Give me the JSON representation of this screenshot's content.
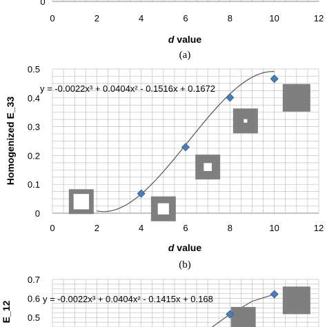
{
  "chart_data": [
    {
      "type": "scatter",
      "panel": "a",
      "visible": "partial (bottom edge only)",
      "caption": "(a)",
      "xlabel_italic": "d",
      "xlabel_rest": " value",
      "xlim": [
        0,
        12
      ],
      "x_ticks": [
        "0",
        "2",
        "4",
        "6",
        "8",
        "10",
        "12"
      ],
      "y_ticks": [
        "0"
      ]
    },
    {
      "type": "scatter",
      "panel": "b",
      "caption": "(b)",
      "xlabel_italic": "d",
      "xlabel_rest": " value",
      "ylabel": "Homogenized E_33",
      "xlim": [
        0,
        12
      ],
      "ylim": [
        0,
        0.5
      ],
      "x_ticks": [
        "0",
        "2",
        "4",
        "6",
        "8",
        "10",
        "12"
      ],
      "y_ticks": [
        "0",
        "0.1",
        "0.2",
        "0.3",
        "0.4",
        "0.5"
      ],
      "grid": true,
      "marker": "diamond",
      "marker_color": "#4a7ebb",
      "series": [
        {
          "x": [
            4,
            6,
            8,
            10
          ],
          "y": [
            0.068,
            0.229,
            0.401,
            0.466
          ]
        }
      ],
      "trendline": {
        "label": "y = -0.0022x³ + 0.0404x² - 0.1516x + 0.1672",
        "coefficients": [
          -0.0022,
          0.0404,
          -0.1516,
          0.1672
        ],
        "x_range": [
          2,
          10
        ]
      },
      "insets": [
        {
          "shape": "square-frame",
          "hole": "large",
          "x": 1.3,
          "y": 0.04
        },
        {
          "shape": "square-frame",
          "hole": "medium",
          "x": 5.0,
          "y": 0.015
        },
        {
          "shape": "square-frame",
          "hole": "small",
          "x": 7.0,
          "y": 0.16
        },
        {
          "shape": "square-frame",
          "hole": "tiny",
          "x": 8.7,
          "y": 0.32
        },
        {
          "shape": "solid-square",
          "hole": "none",
          "x": 11.0,
          "y": 0.4
        }
      ]
    },
    {
      "type": "scatter",
      "panel": "c",
      "visible": "partial (top only)",
      "ylabel": "E_12",
      "y_ticks": [
        "0.5",
        "0.6",
        "0.7"
      ],
      "ylim": [
        0.45,
        0.7
      ],
      "marker": "diamond",
      "marker_color": "#4a7ebb",
      "series": [
        {
          "x": [
            8,
            10
          ],
          "y": [
            0.517,
            0.622
          ]
        }
      ],
      "trendline": {
        "label": "y = -0.0022x³ + 0.0404x² - 0.1415x + 0.168"
      }
    }
  ],
  "colors": {
    "marker": "#4a7ebb",
    "marker_edge": "#2f5b8f",
    "grid": "#c0c0c0",
    "inset_gray": "#7f7f7f",
    "curve": "#555555"
  }
}
